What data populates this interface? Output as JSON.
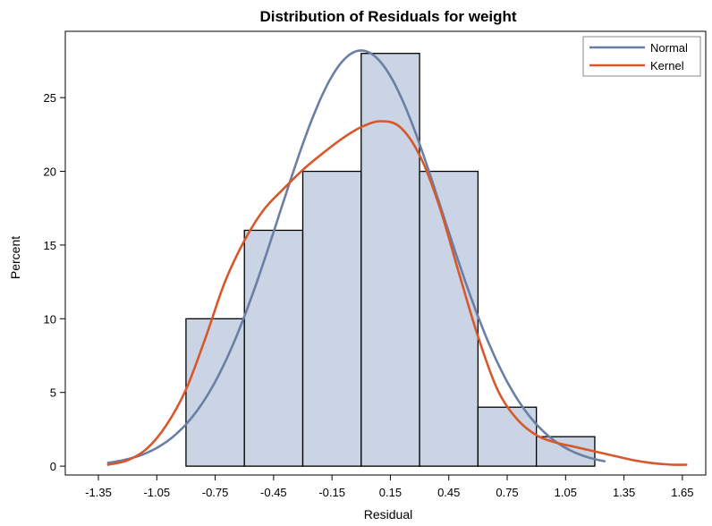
{
  "chart_data": {
    "type": "bar",
    "title": "Distribution of Residuals for weight",
    "xlabel": "Residual",
    "ylabel": "Percent",
    "xlim": [
      -1.52,
      1.77
    ],
    "ylim": [
      -0.6,
      29.5
    ],
    "xticks": [
      "-1.35",
      "-1.05",
      "-0.75",
      "-0.45",
      "-0.15",
      "0.15",
      "0.45",
      "0.75",
      "1.05",
      "1.35",
      "1.65"
    ],
    "yticks": [
      "0",
      "5",
      "10",
      "15",
      "20",
      "25"
    ],
    "bins": [
      {
        "start": -0.9,
        "end": -0.6,
        "value": 10
      },
      {
        "start": -0.6,
        "end": -0.3,
        "value": 16
      },
      {
        "start": -0.3,
        "end": 0.0,
        "value": 20
      },
      {
        "start": 0.0,
        "end": 0.3,
        "value": 28
      },
      {
        "start": 0.3,
        "end": 0.6,
        "value": 20
      },
      {
        "start": 0.6,
        "end": 0.9,
        "value": 4
      },
      {
        "start": 0.9,
        "end": 1.2,
        "value": 2
      }
    ],
    "series": [
      {
        "name": "Normal",
        "color": "#6a7fa3",
        "curve": "normal",
        "mean": 0.0,
        "sd": 0.42,
        "peak": 28.2,
        "range": [
          -1.3,
          1.25
        ]
      },
      {
        "name": "Kernel",
        "color": "#d6582b",
        "curve": "kernel",
        "x": [
          -1.3,
          -1.2,
          -1.1,
          -1.0,
          -0.9,
          -0.8,
          -0.7,
          -0.6,
          -0.5,
          -0.4,
          -0.3,
          -0.2,
          -0.1,
          0.0,
          0.1,
          0.2,
          0.3,
          0.4,
          0.5,
          0.6,
          0.7,
          0.8,
          0.9,
          1.0,
          1.1,
          1.2,
          1.3,
          1.4,
          1.5,
          1.6,
          1.67
        ],
        "y": [
          0.1,
          0.4,
          1.2,
          2.8,
          5.2,
          8.7,
          12.5,
          15.3,
          17.4,
          18.8,
          20.1,
          21.2,
          22.2,
          23.0,
          23.4,
          23.0,
          21.1,
          17.7,
          13.2,
          8.8,
          5.2,
          3.2,
          2.1,
          1.6,
          1.3,
          1.0,
          0.7,
          0.4,
          0.2,
          0.1,
          0.1
        ]
      }
    ],
    "legend": "top-right",
    "grid": false
  }
}
